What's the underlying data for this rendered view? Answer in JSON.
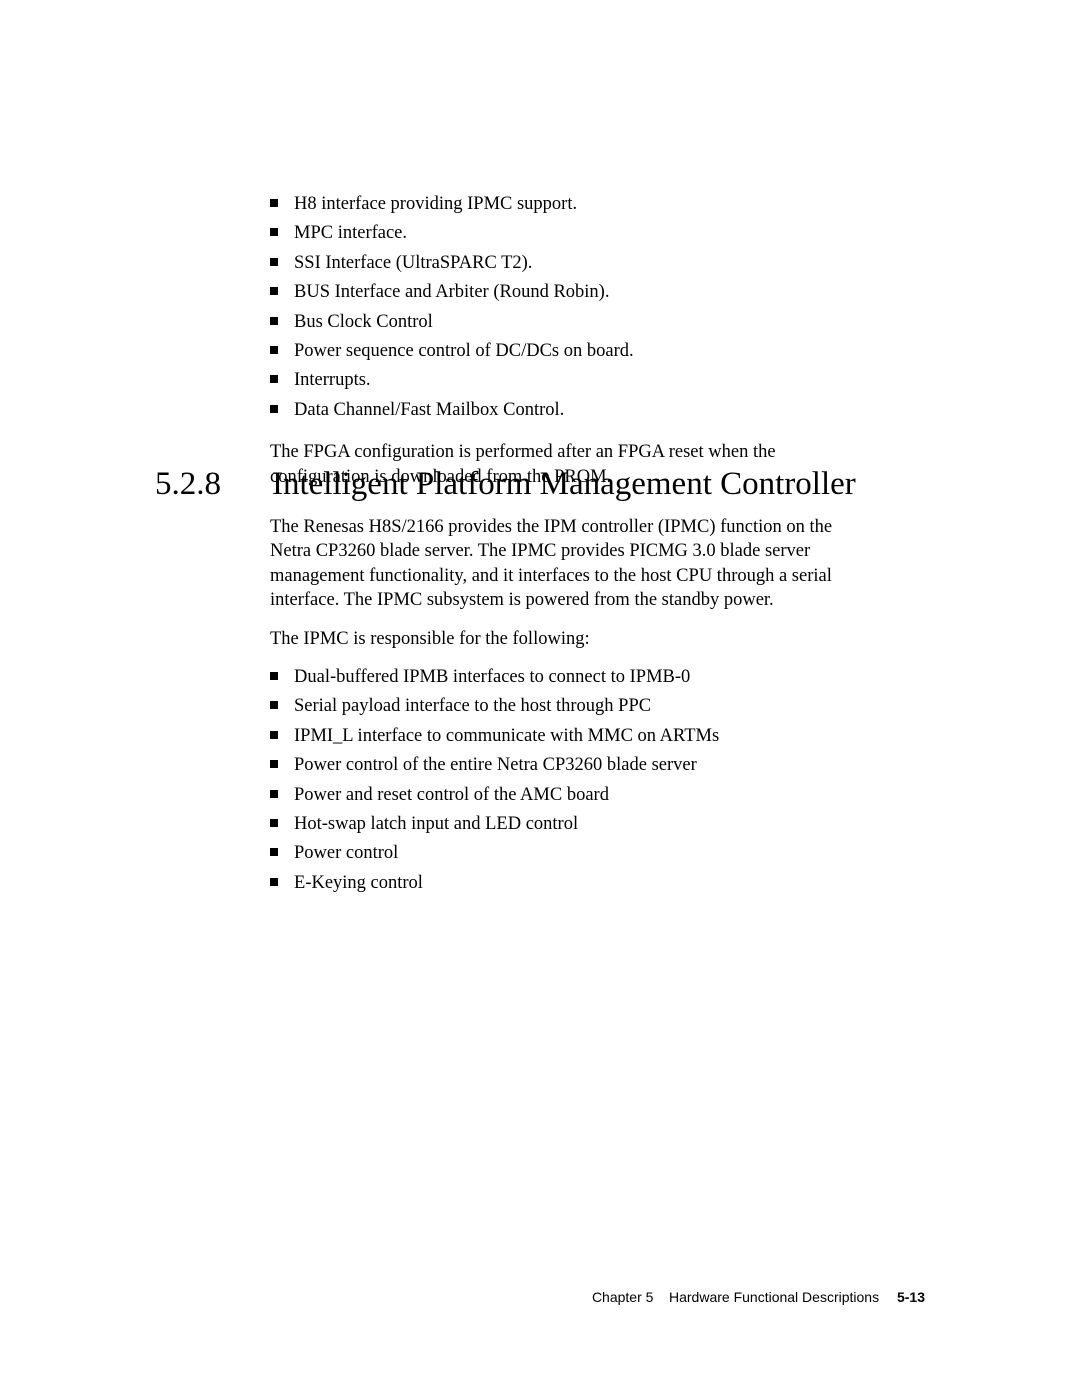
{
  "list1": {
    "items": [
      "H8 interface providing IPMC support.",
      "MPC interface.",
      "SSI Interface (UltraSPARC T2).",
      "BUS Interface and Arbiter (Round Robin).",
      "Bus Clock Control",
      "Power sequence control of DC/DCs on board.",
      "Interrupts.",
      "Data Channel/Fast Mailbox Control."
    ]
  },
  "para1": "The FPGA configuration is performed after an FPGA reset when the configuration is downloaded from the PROM.",
  "section": {
    "number": "5.2.8",
    "title": "Intelligent Platform Management Controller"
  },
  "para2": "The Renesas H8S/2166 provides the IPM controller (IPMC) function on the Netra CP3260 blade server. The IPMC provides PICMG 3.0 blade server management functionality, and it interfaces to the host CPU through a serial interface. The IPMC subsystem is powered from the standby power.",
  "para3": "The IPMC is responsible for the following:",
  "list2": {
    "items": [
      "Dual-buffered IPMB interfaces to connect to IPMB-0",
      "Serial payload interface to the host through PPC",
      "IPMI_L interface to communicate with MMC on ARTMs",
      "Power control of the entire Netra CP3260 blade server",
      "Power and reset control of the AMC board",
      "Hot-swap latch input and LED control",
      "Power control",
      "E-Keying control"
    ]
  },
  "footer": {
    "chapter_label": "Chapter 5",
    "chapter_title": "Hardware Functional Descriptions",
    "page": "5-13"
  }
}
